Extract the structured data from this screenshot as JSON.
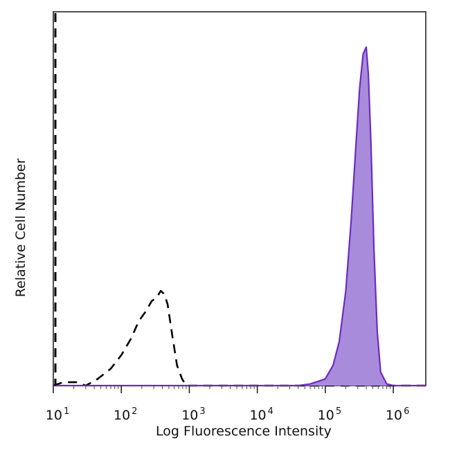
{
  "chart_data": {
    "type": "area",
    "xlabel": "Log Fluorescence Intensity",
    "ylabel": "Relative Cell Number",
    "xscale": "log",
    "xlim": [
      10,
      3000000
    ],
    "ylim": [
      0,
      1
    ],
    "grid": false,
    "legend": "none",
    "x_ticks": [
      {
        "base": "10",
        "exp": "1",
        "value": 10
      },
      {
        "base": "10",
        "exp": "2",
        "value": 100
      },
      {
        "base": "10",
        "exp": "3",
        "value": 1000
      },
      {
        "base": "10",
        "exp": "4",
        "value": 10000
      },
      {
        "base": "10",
        "exp": "5",
        "value": 100000
      },
      {
        "base": "10",
        "exp": "6",
        "value": 1000000
      }
    ],
    "series": [
      {
        "style": "dashed",
        "filled": false,
        "color": "#000000",
        "x": [
          10,
          14,
          22,
          30,
          45,
          70,
          100,
          140,
          180,
          230,
          280,
          330,
          380,
          430,
          480,
          560,
          660,
          780,
          900,
          1100,
          1500,
          3000,
          10000,
          30000,
          100000,
          3000000
        ],
        "y": [
          0,
          0.01,
          0.01,
          0,
          0.02,
          0.05,
          0.09,
          0.14,
          0.19,
          0.22,
          0.25,
          0.26,
          0.28,
          0.27,
          0.24,
          0.15,
          0.06,
          0.02,
          0,
          0,
          0,
          0,
          0,
          0,
          0,
          0
        ]
      },
      {
        "style": "solid",
        "filled": true,
        "color": "#6a2bc0",
        "fill_color": "#a98bdc",
        "x": [
          10,
          1000,
          10000,
          40000,
          60000,
          85000,
          100000,
          130000,
          160000,
          200000,
          240000,
          280000,
          320000,
          360000,
          400000,
          430000,
          470000,
          520000,
          580000,
          650000,
          800000,
          1000000,
          3000000
        ],
        "y": [
          0,
          0,
          0,
          0,
          0.005,
          0.015,
          0.02,
          0.06,
          0.13,
          0.28,
          0.49,
          0.7,
          0.88,
          0.98,
          1.0,
          0.92,
          0.71,
          0.4,
          0.16,
          0.04,
          0.005,
          0,
          0
        ]
      }
    ]
  }
}
